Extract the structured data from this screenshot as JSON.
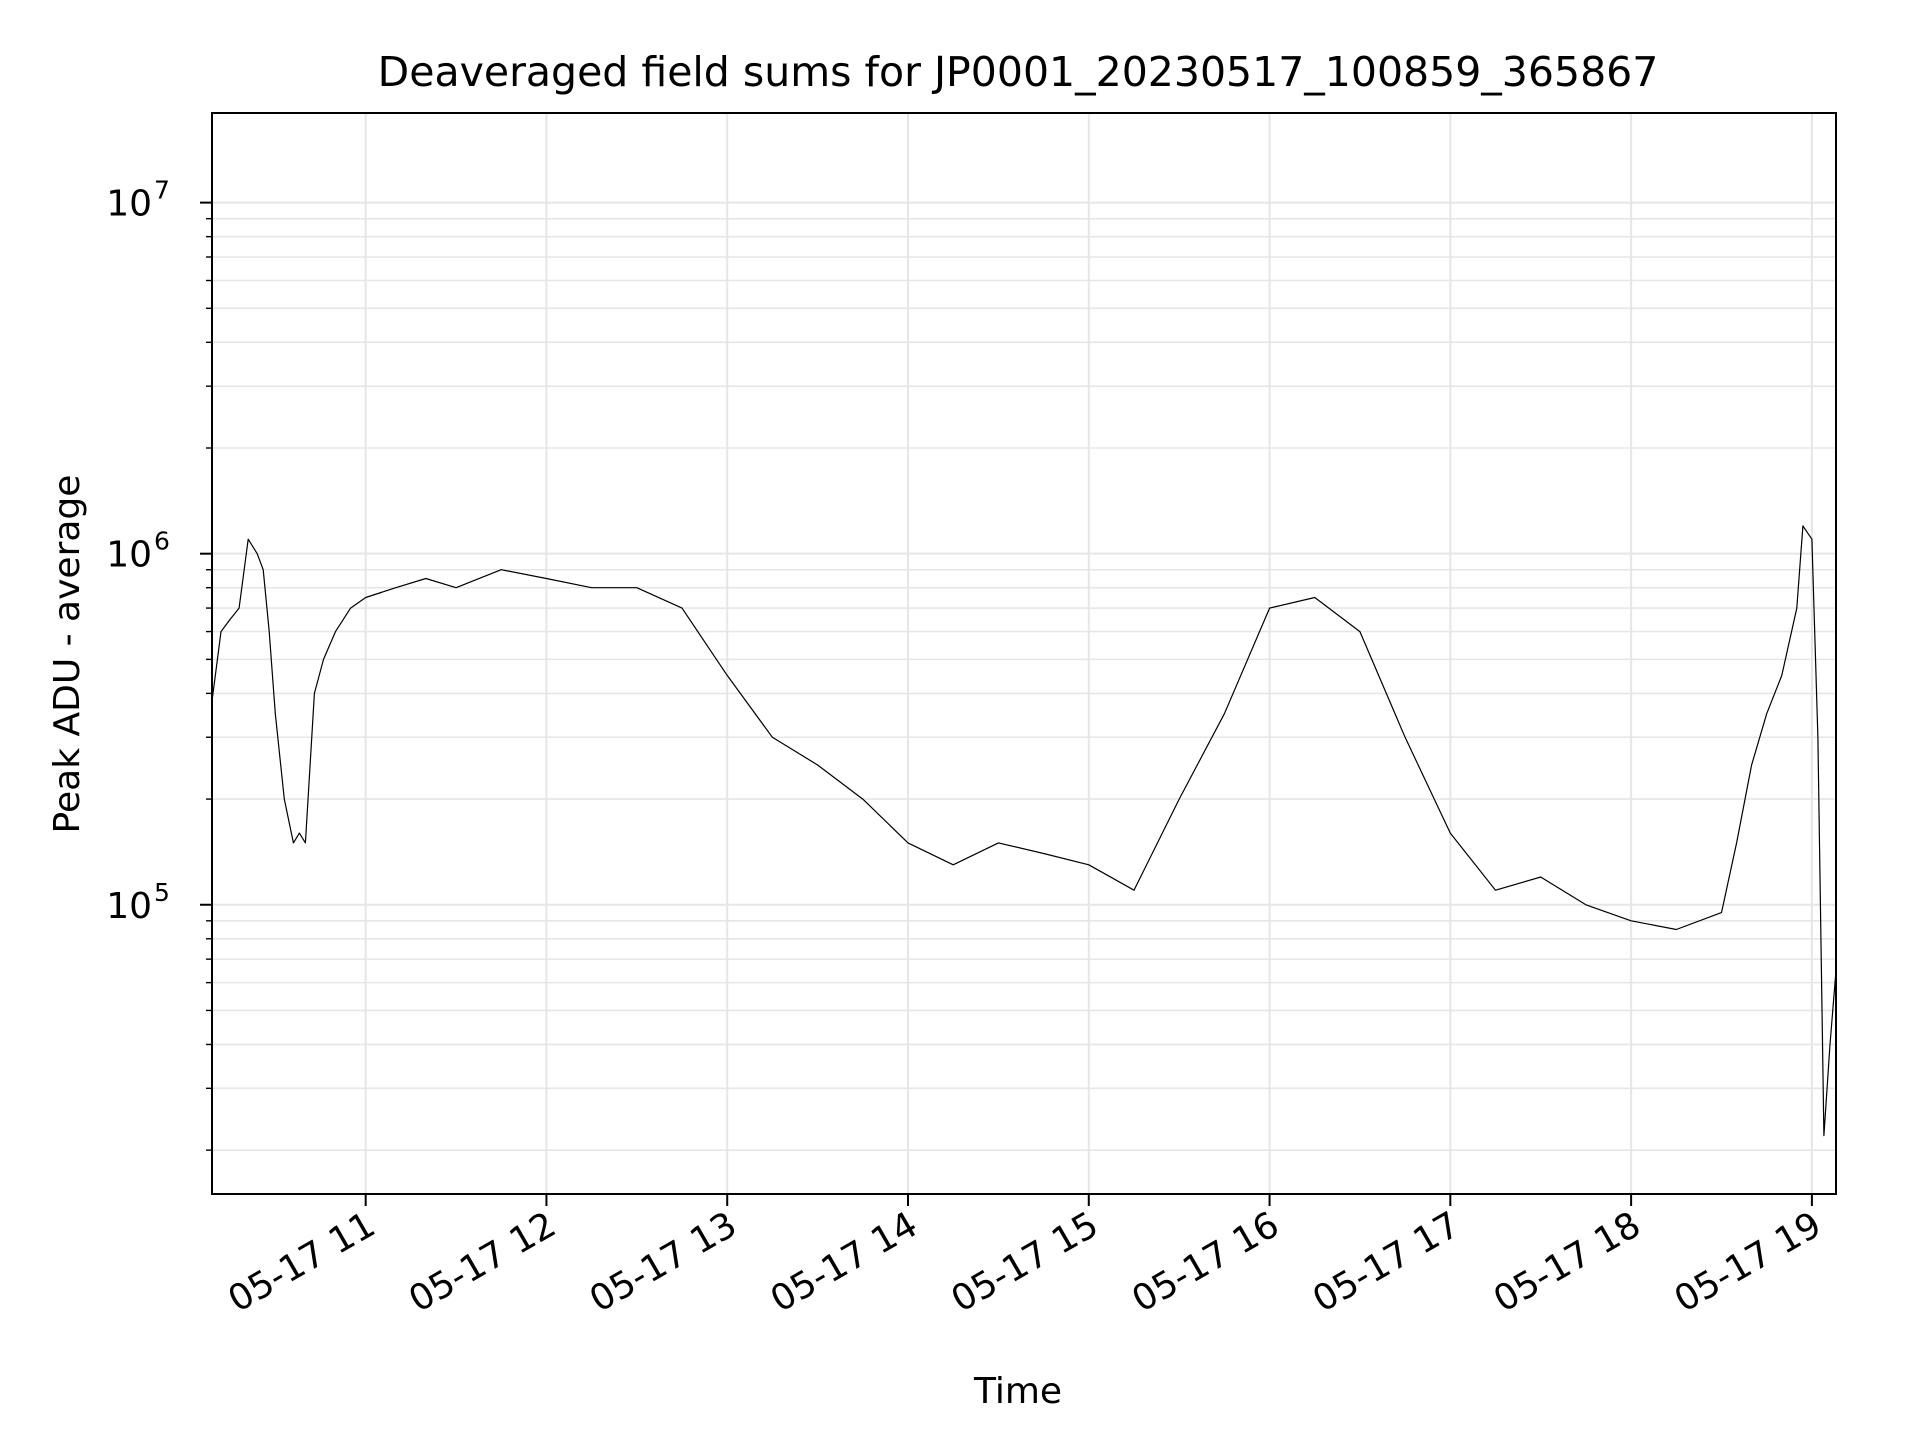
{
  "chart_data": {
    "type": "line",
    "title": "Deaveraged field sums for JP0001_20230517_100859_365867",
    "xlabel": "Time",
    "ylabel": "Peak ADU - average",
    "yscale": "log",
    "ylim": [
      15000,
      18000000
    ],
    "xlim": [
      "2023-05-17 10:09",
      "2023-05-17 19:08"
    ],
    "grid": true,
    "grid_minor": true,
    "colors": {
      "line": "#000000",
      "grid": "#e6e6e6",
      "axes": "#000000"
    },
    "x_ticks": [
      {
        "value": "2023-05-17 11:00",
        "label": "05-17 11"
      },
      {
        "value": "2023-05-17 12:00",
        "label": "05-17 12"
      },
      {
        "value": "2023-05-17 13:00",
        "label": "05-17 13"
      },
      {
        "value": "2023-05-17 14:00",
        "label": "05-17 14"
      },
      {
        "value": "2023-05-17 15:00",
        "label": "05-17 15"
      },
      {
        "value": "2023-05-17 16:00",
        "label": "05-17 16"
      },
      {
        "value": "2023-05-17 17:00",
        "label": "05-17 17"
      },
      {
        "value": "2023-05-17 18:00",
        "label": "05-17 18"
      },
      {
        "value": "2023-05-17 19:00",
        "label": "05-17 19"
      }
    ],
    "y_ticks": [
      {
        "value": 100000,
        "base": "10",
        "exp": "5"
      },
      {
        "value": 1000000,
        "base": "10",
        "exp": "6"
      },
      {
        "value": 10000000,
        "base": "10",
        "exp": "7"
      }
    ],
    "series": [
      {
        "x": [
          "2023-05-17 10:09",
          "2023-05-17 10:12",
          "2023-05-17 10:15",
          "2023-05-17 10:18",
          "2023-05-17 10:21",
          "2023-05-17 10:24",
          "2023-05-17 10:26",
          "2023-05-17 10:28",
          "2023-05-17 10:30",
          "2023-05-17 10:33",
          "2023-05-17 10:36",
          "2023-05-17 10:38",
          "2023-05-17 10:40",
          "2023-05-17 10:43",
          "2023-05-17 10:46",
          "2023-05-17 10:50",
          "2023-05-17 10:55",
          "2023-05-17 11:00",
          "2023-05-17 11:10",
          "2023-05-17 11:20",
          "2023-05-17 11:30",
          "2023-05-17 11:45",
          "2023-05-17 12:00",
          "2023-05-17 12:15",
          "2023-05-17 12:30",
          "2023-05-17 12:45",
          "2023-05-17 13:00",
          "2023-05-17 13:15",
          "2023-05-17 13:30",
          "2023-05-17 13:45",
          "2023-05-17 14:00",
          "2023-05-17 14:15",
          "2023-05-17 14:30",
          "2023-05-17 14:45",
          "2023-05-17 15:00",
          "2023-05-17 15:15",
          "2023-05-17 15:30",
          "2023-05-17 15:45",
          "2023-05-17 16:00",
          "2023-05-17 16:15",
          "2023-05-17 16:30",
          "2023-05-17 16:45",
          "2023-05-17 17:00",
          "2023-05-17 17:15",
          "2023-05-17 17:30",
          "2023-05-17 17:45",
          "2023-05-17 18:00",
          "2023-05-17 18:15",
          "2023-05-17 18:30",
          "2023-05-17 18:35",
          "2023-05-17 18:40",
          "2023-05-17 18:45",
          "2023-05-17 18:50",
          "2023-05-17 18:55",
          "2023-05-17 18:57",
          "2023-05-17 19:00",
          "2023-05-17 19:02",
          "2023-05-17 19:04",
          "2023-05-17 19:06",
          "2023-05-17 19:08"
        ],
        "y": [
          380000,
          600000,
          650000,
          700000,
          1100000,
          1000000,
          900000,
          600000,
          350000,
          200000,
          150000,
          160000,
          150000,
          400000,
          500000,
          600000,
          700000,
          750000,
          800000,
          850000,
          800000,
          900000,
          850000,
          800000,
          800000,
          700000,
          450000,
          300000,
          250000,
          200000,
          150000,
          130000,
          150000,
          140000,
          130000,
          110000,
          200000,
          350000,
          700000,
          750000,
          600000,
          300000,
          160000,
          110000,
          120000,
          100000,
          90000,
          85000,
          95000,
          150000,
          250000,
          350000,
          450000,
          700000,
          1200000,
          1100000,
          300000,
          22000,
          40000,
          65000
        ]
      }
    ]
  }
}
